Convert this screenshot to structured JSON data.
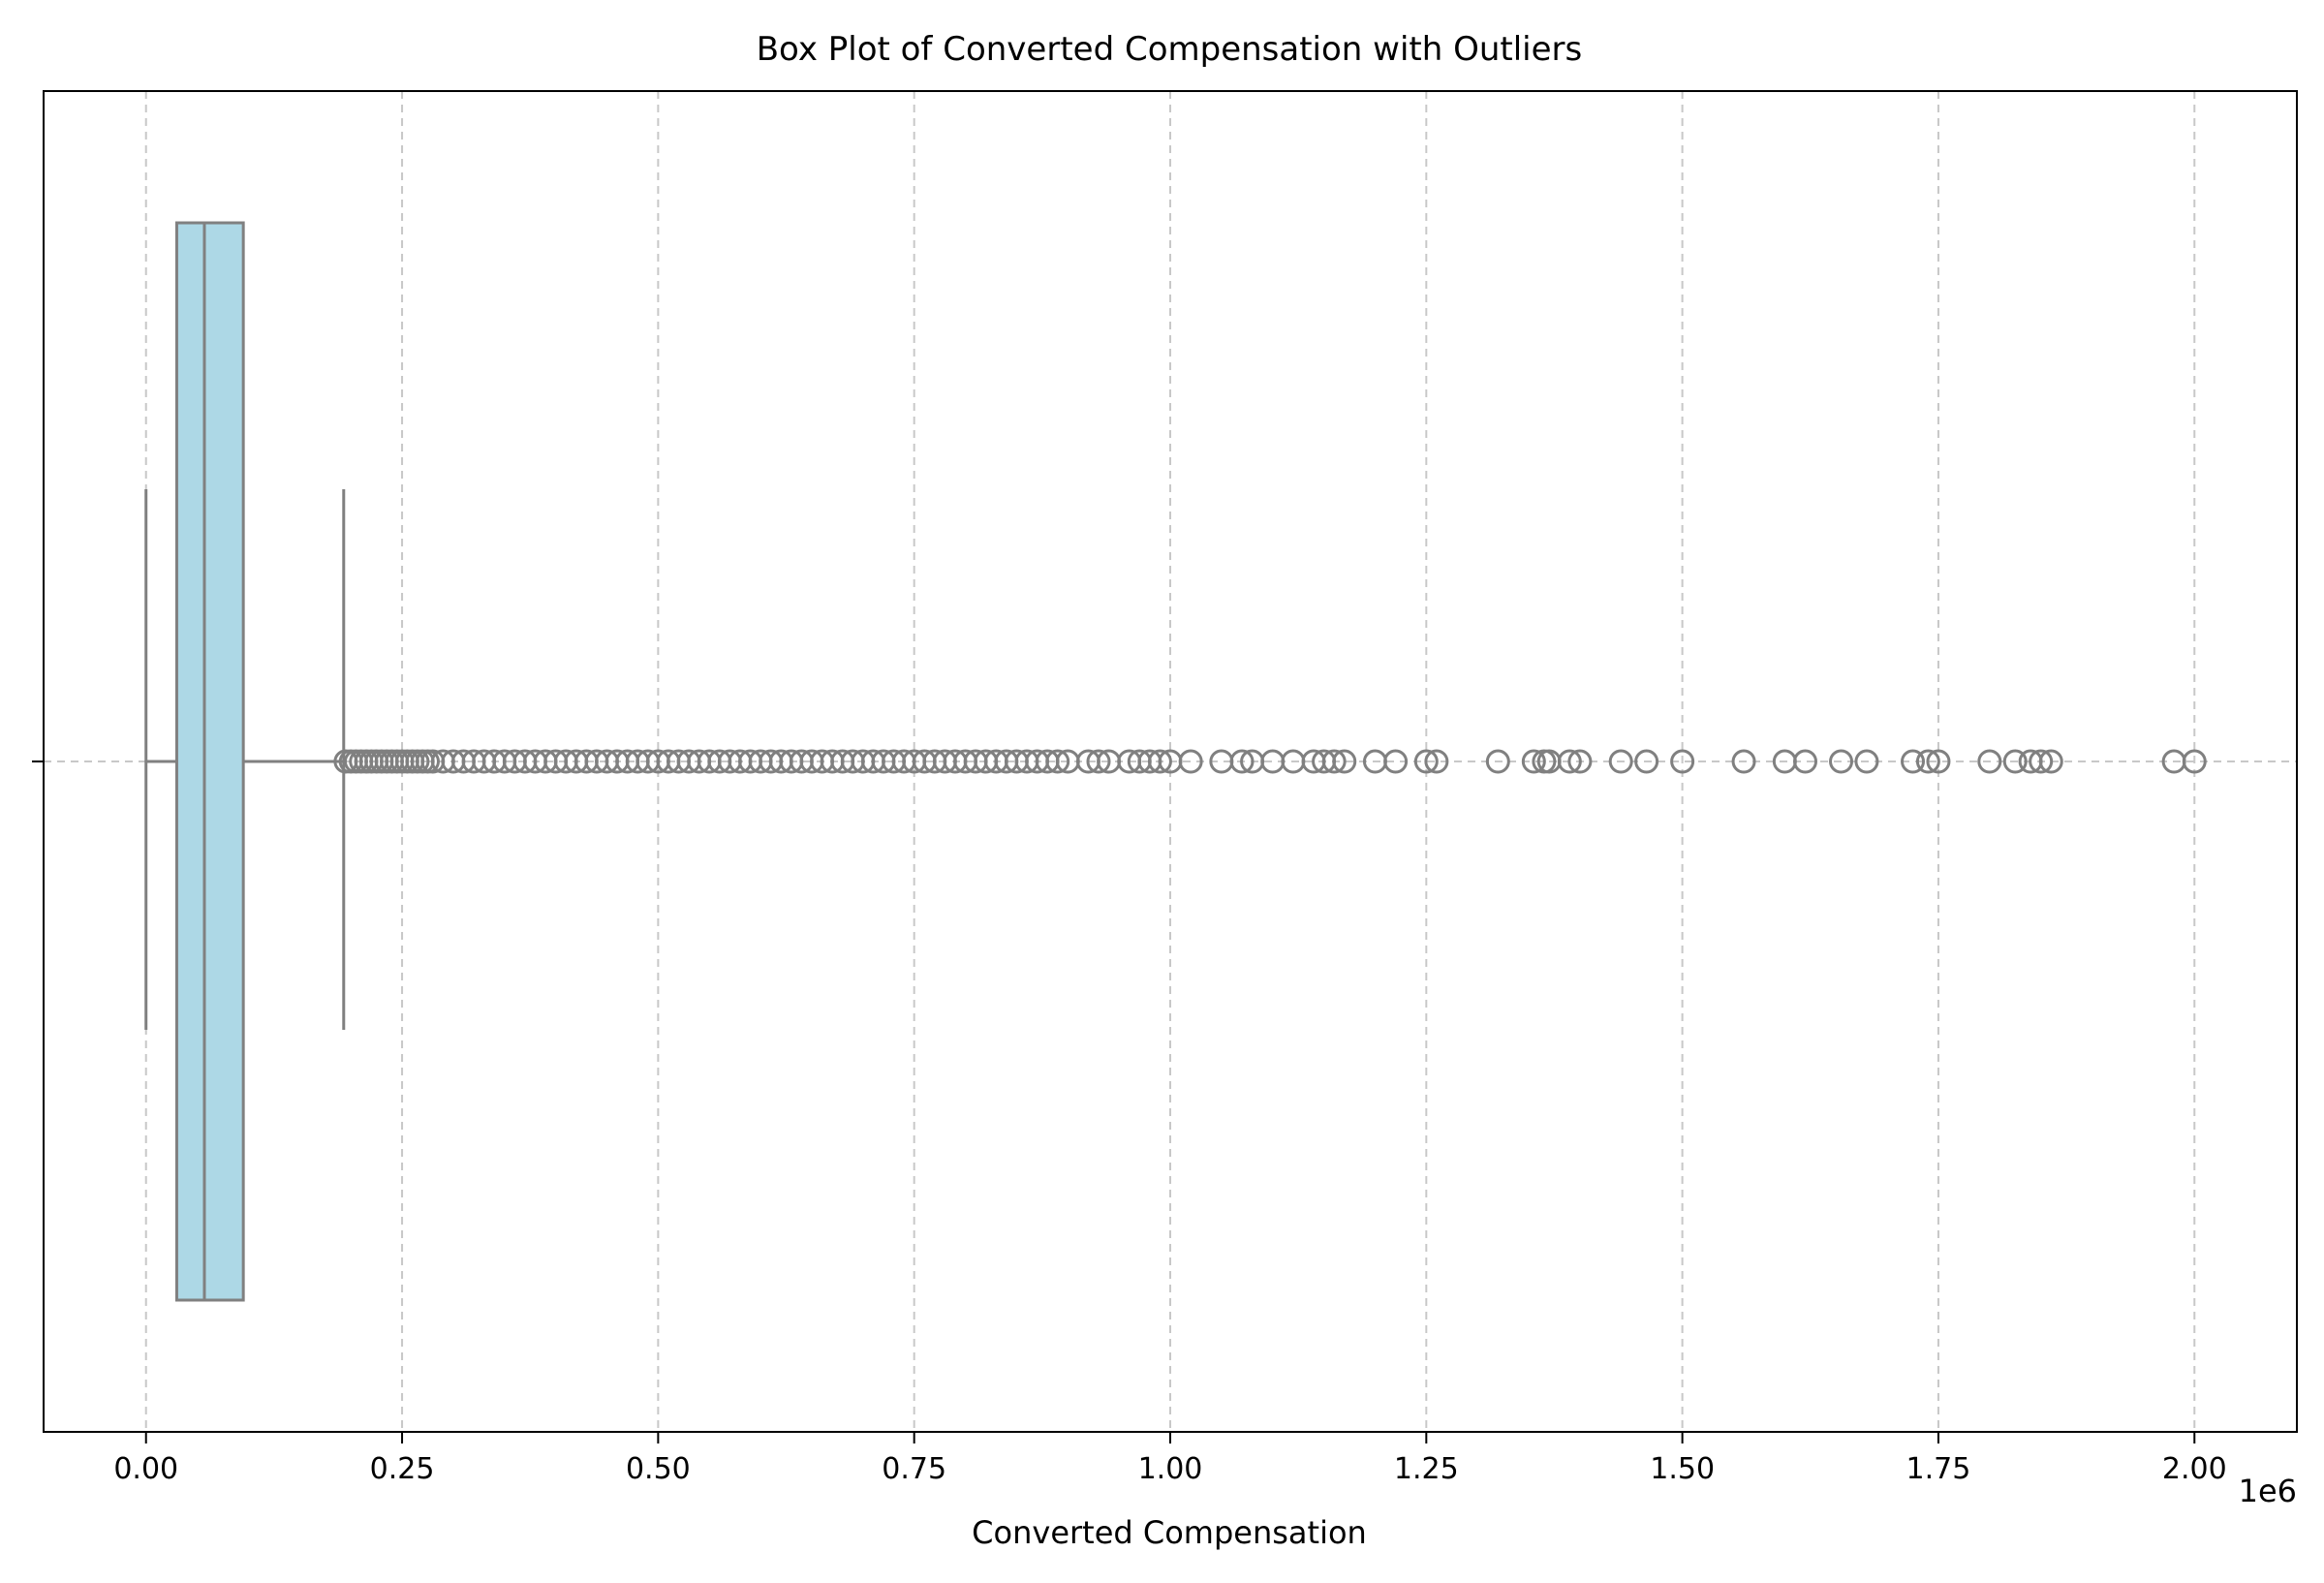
{
  "chart_data": {
    "type": "box",
    "title": "Box Plot of Converted Compensation with Outliers",
    "xlabel": "Converted Compensation",
    "ylabel": "",
    "x_offset_label": "1e6",
    "xlim": [
      -0.1,
      2.1
    ],
    "xticks": [
      0.0,
      0.25,
      0.5,
      0.75,
      1.0,
      1.25,
      1.5,
      1.75,
      2.0
    ],
    "xtick_labels": [
      "0.00",
      "0.25",
      "0.50",
      "0.75",
      "1.00",
      "1.25",
      "1.50",
      "1.75",
      "2.00"
    ],
    "orientation": "horizontal",
    "grid": true,
    "box": {
      "whisker_low": 0.0,
      "q1": 0.03,
      "median": 0.057,
      "q3": 0.095,
      "whisker_high": 0.193
    },
    "outliers": [
      0.195,
      0.2,
      0.205,
      0.21,
      0.215,
      0.22,
      0.225,
      0.23,
      0.235,
      0.24,
      0.245,
      0.25,
      0.255,
      0.26,
      0.265,
      0.27,
      0.275,
      0.28,
      0.29,
      0.3,
      0.31,
      0.32,
      0.33,
      0.34,
      0.35,
      0.36,
      0.37,
      0.38,
      0.39,
      0.4,
      0.41,
      0.42,
      0.43,
      0.44,
      0.45,
      0.46,
      0.47,
      0.48,
      0.49,
      0.5,
      0.51,
      0.52,
      0.53,
      0.54,
      0.55,
      0.56,
      0.57,
      0.58,
      0.59,
      0.6,
      0.61,
      0.62,
      0.63,
      0.64,
      0.65,
      0.66,
      0.67,
      0.68,
      0.69,
      0.7,
      0.71,
      0.72,
      0.73,
      0.74,
      0.75,
      0.76,
      0.77,
      0.78,
      0.79,
      0.8,
      0.81,
      0.82,
      0.83,
      0.84,
      0.85,
      0.86,
      0.87,
      0.88,
      0.89,
      0.9,
      0.92,
      0.93,
      0.94,
      0.96,
      0.97,
      0.98,
      0.99,
      1.0,
      1.02,
      1.05,
      1.07,
      1.08,
      1.1,
      1.12,
      1.14,
      1.15,
      1.16,
      1.17,
      1.2,
      1.22,
      1.25,
      1.26,
      1.32,
      1.355,
      1.365,
      1.37,
      1.39,
      1.4,
      1.44,
      1.465,
      1.5,
      1.56,
      1.6,
      1.62,
      1.655,
      1.68,
      1.725,
      1.74,
      1.75,
      1.8,
      1.825,
      1.84,
      1.85,
      1.86,
      1.98,
      2.0
    ],
    "colors": {
      "box_fill": "#add8e6",
      "line": "#808080",
      "grid": "#c8c8c8",
      "frame": "#000000"
    }
  }
}
